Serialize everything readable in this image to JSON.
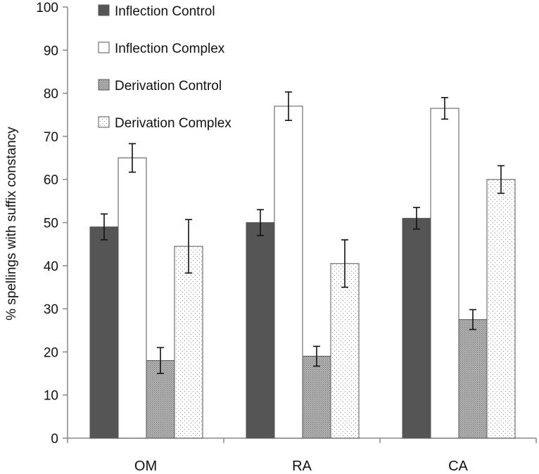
{
  "chart_data": {
    "type": "bar",
    "title": "",
    "xlabel": "",
    "ylabel": "% spellings with suffix constancy",
    "ylim": [
      0,
      100
    ],
    "yticks": [
      0,
      10,
      20,
      30,
      40,
      50,
      60,
      70,
      80,
      90,
      100
    ],
    "grid": false,
    "legend_position": "top-left",
    "categories": [
      "OM",
      "RA",
      "CA"
    ],
    "series": [
      {
        "name": "Inflection Control",
        "style": "dark-solid",
        "values": [
          49,
          50,
          51
        ],
        "errors": [
          3.0,
          3.0,
          2.5
        ]
      },
      {
        "name": "Inflection Complex",
        "style": "white",
        "values": [
          65,
          77,
          76.5
        ],
        "errors": [
          3.3,
          3.3,
          2.5
        ]
      },
      {
        "name": "Derivation Control",
        "style": "gray-stipple",
        "values": [
          18,
          19,
          27.5
        ],
        "errors": [
          3.0,
          2.3,
          2.3
        ]
      },
      {
        "name": "Derivation Complex",
        "style": "dot-stipple",
        "values": [
          44.5,
          40.5,
          60
        ],
        "errors": [
          6.2,
          5.5,
          3.2
        ]
      }
    ],
    "colors": {
      "inflection_control": "#555555",
      "inflection_complex": "#ffffff",
      "derivation_control": "#a9a9a9",
      "derivation_complex": "#f4f4f4",
      "axis": "#888888",
      "bar_stroke": "#555555"
    }
  }
}
